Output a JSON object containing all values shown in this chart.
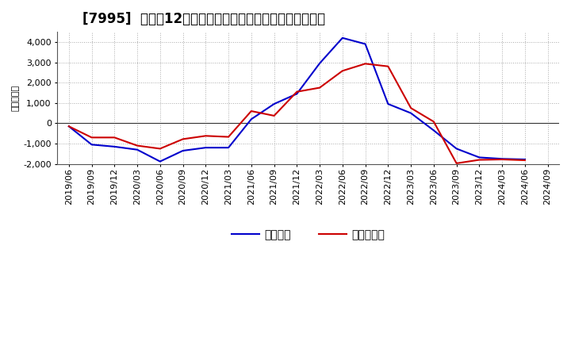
{
  "title": "[7995]  利益だ12か月移動合計の対前年同期増減額の推移",
  "ylabel": "（百万円）",
  "x_labels": [
    "2019/06",
    "2019/09",
    "2019/12",
    "2020/03",
    "2020/06",
    "2020/09",
    "2020/12",
    "2021/03",
    "2021/06",
    "2021/09",
    "2021/12",
    "2022/03",
    "2022/06",
    "2022/09",
    "2022/12",
    "2023/03",
    "2023/06",
    "2023/09",
    "2023/12",
    "2024/03",
    "2024/06",
    "2024/09"
  ],
  "operating_profit": [
    -150,
    -1050,
    -1150,
    -1300,
    -1880,
    -1350,
    -1200,
    -1200,
    200,
    950,
    1450,
    2950,
    4200,
    3900,
    950,
    500,
    -350,
    -1250,
    -1680,
    -1750,
    -1780,
    null
  ],
  "net_profit": [
    -150,
    -700,
    -700,
    -1100,
    -1250,
    -780,
    -620,
    -670,
    600,
    370,
    1550,
    1750,
    2580,
    2930,
    2800,
    750,
    80,
    -1970,
    -1800,
    -1780,
    -1820,
    null
  ],
  "operating_color": "#0000cc",
  "net_color": "#cc0000",
  "ylim": [
    -2000,
    4500
  ],
  "yticks": [
    -2000,
    -1000,
    0,
    1000,
    2000,
    3000,
    4000
  ],
  "background_color": "#ffffff",
  "grid_color": "#aaaaaa",
  "legend_labels": [
    "経常利益",
    "当期純利益"
  ],
  "title_fontsize": 12,
  "axis_fontsize": 8,
  "legend_fontsize": 10
}
